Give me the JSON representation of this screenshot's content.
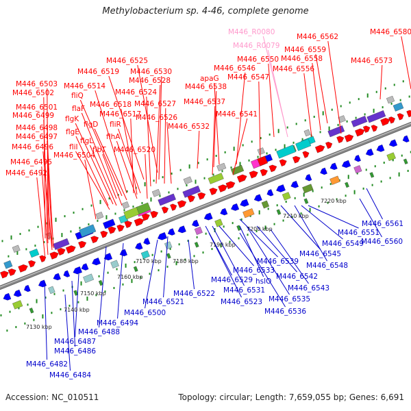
{
  "title": "Methylobacterium sp. 4-46, complete genome",
  "footer": {
    "accession": "Accession: NC_010511",
    "summary": "Topology: circular; Length: 7,659,055 bp; Genes: 6,691"
  },
  "colors": {
    "forward_label": "#ff0000",
    "reverse_label": "#0000cc",
    "rna_label": "#ff99cc",
    "backbone": "#888888",
    "tick": "#228b22"
  },
  "scale_ticks": [
    "7130 kbp",
    "7140 kbp",
    "7150 kbp",
    "7160 kbp",
    "7170 kbp",
    "7180 kbp",
    "7190 kbp",
    "7200 kbp",
    "7210 kbp",
    "7220 kbp"
  ],
  "top_labels": [
    {
      "text": "M446_6580",
      "strand": "forward"
    },
    {
      "text": "M446_6562",
      "strand": "forward"
    },
    {
      "text": "M446_6573",
      "strand": "forward"
    },
    {
      "text": "M446_R0080",
      "strand": "rna"
    },
    {
      "text": "M446_R0079",
      "strand": "rna"
    },
    {
      "text": "M446_6559",
      "strand": "forward"
    },
    {
      "text": "M446_6558",
      "strand": "forward"
    },
    {
      "text": "M446_6550",
      "strand": "forward"
    },
    {
      "text": "M446_6556",
      "strand": "forward"
    },
    {
      "text": "M446_6546",
      "strand": "forward"
    },
    {
      "text": "M446_6547",
      "strand": "forward"
    },
    {
      "text": "apaG",
      "strand": "forward"
    },
    {
      "text": "M446_6538",
      "strand": "forward"
    },
    {
      "text": "M446_6537",
      "strand": "forward"
    },
    {
      "text": "M446_6541",
      "strand": "forward"
    },
    {
      "text": "M446_6525",
      "strand": "forward"
    },
    {
      "text": "M446_6519",
      "strand": "forward"
    },
    {
      "text": "M446_6530",
      "strand": "forward"
    },
    {
      "text": "M446_6528",
      "strand": "forward"
    },
    {
      "text": "M446_6503",
      "strand": "forward"
    },
    {
      "text": "M446_6514",
      "strand": "forward"
    },
    {
      "text": "M446_6502",
      "strand": "forward"
    },
    {
      "text": "fliQ",
      "strand": "forward"
    },
    {
      "text": "M446_6524",
      "strand": "forward"
    },
    {
      "text": "M446_6518",
      "strand": "forward"
    },
    {
      "text": "M446_6501",
      "strand": "forward"
    },
    {
      "text": "flaF",
      "strand": "forward"
    },
    {
      "text": "M446_6527",
      "strand": "forward"
    },
    {
      "text": "M446_6499",
      "strand": "forward"
    },
    {
      "text": "M446_6517",
      "strand": "forward"
    },
    {
      "text": "flgK",
      "strand": "forward"
    },
    {
      "text": "flgD",
      "strand": "forward"
    },
    {
      "text": "M446_6526",
      "strand": "forward"
    },
    {
      "text": "M446_6532",
      "strand": "forward"
    },
    {
      "text": "M446_6498",
      "strand": "forward"
    },
    {
      "text": "fliR",
      "strand": "forward"
    },
    {
      "text": "flgE",
      "strand": "forward"
    },
    {
      "text": "M446_6497",
      "strand": "forward"
    },
    {
      "text": "flhA",
      "strand": "forward"
    },
    {
      "text": "flgL",
      "strand": "forward"
    },
    {
      "text": "M446_6496",
      "strand": "forward"
    },
    {
      "text": "fliI",
      "strand": "forward"
    },
    {
      "text": "flbT",
      "strand": "forward"
    },
    {
      "text": "M446_6520",
      "strand": "forward"
    },
    {
      "text": "M446_6504",
      "strand": "forward"
    },
    {
      "text": "M446_6495",
      "strand": "forward"
    },
    {
      "text": "M446_6492",
      "strand": "forward"
    }
  ],
  "bottom_labels": [
    {
      "text": "M446_6561",
      "strand": "reverse"
    },
    {
      "text": "M446_6551",
      "strand": "reverse"
    },
    {
      "text": "M446_6560",
      "strand": "reverse"
    },
    {
      "text": "M446_6549",
      "strand": "reverse"
    },
    {
      "text": "M446_6545",
      "strand": "reverse"
    },
    {
      "text": "M446_6548",
      "strand": "reverse"
    },
    {
      "text": "M446_6539",
      "strand": "reverse"
    },
    {
      "text": "M446_6533",
      "strand": "reverse"
    },
    {
      "text": "M446_6542",
      "strand": "reverse"
    },
    {
      "text": "M446_6529",
      "strand": "reverse"
    },
    {
      "text": "hslO",
      "strand": "reverse"
    },
    {
      "text": "M446_6543",
      "strand": "reverse"
    },
    {
      "text": "M446_6531",
      "strand": "reverse"
    },
    {
      "text": "M446_6535",
      "strand": "reverse"
    },
    {
      "text": "M446_6522",
      "strand": "reverse"
    },
    {
      "text": "M446_6523",
      "strand": "reverse"
    },
    {
      "text": "M446_6536",
      "strand": "reverse"
    },
    {
      "text": "M446_6521",
      "strand": "reverse"
    },
    {
      "text": "M446_6500",
      "strand": "reverse"
    },
    {
      "text": "M446_6494",
      "strand": "reverse"
    },
    {
      "text": "M446_6488",
      "strand": "reverse"
    },
    {
      "text": "M446_6487",
      "strand": "reverse"
    },
    {
      "text": "M446_6486",
      "strand": "reverse"
    },
    {
      "text": "M446_6482",
      "strand": "reverse"
    },
    {
      "text": "M446_6484",
      "strand": "reverse"
    }
  ]
}
